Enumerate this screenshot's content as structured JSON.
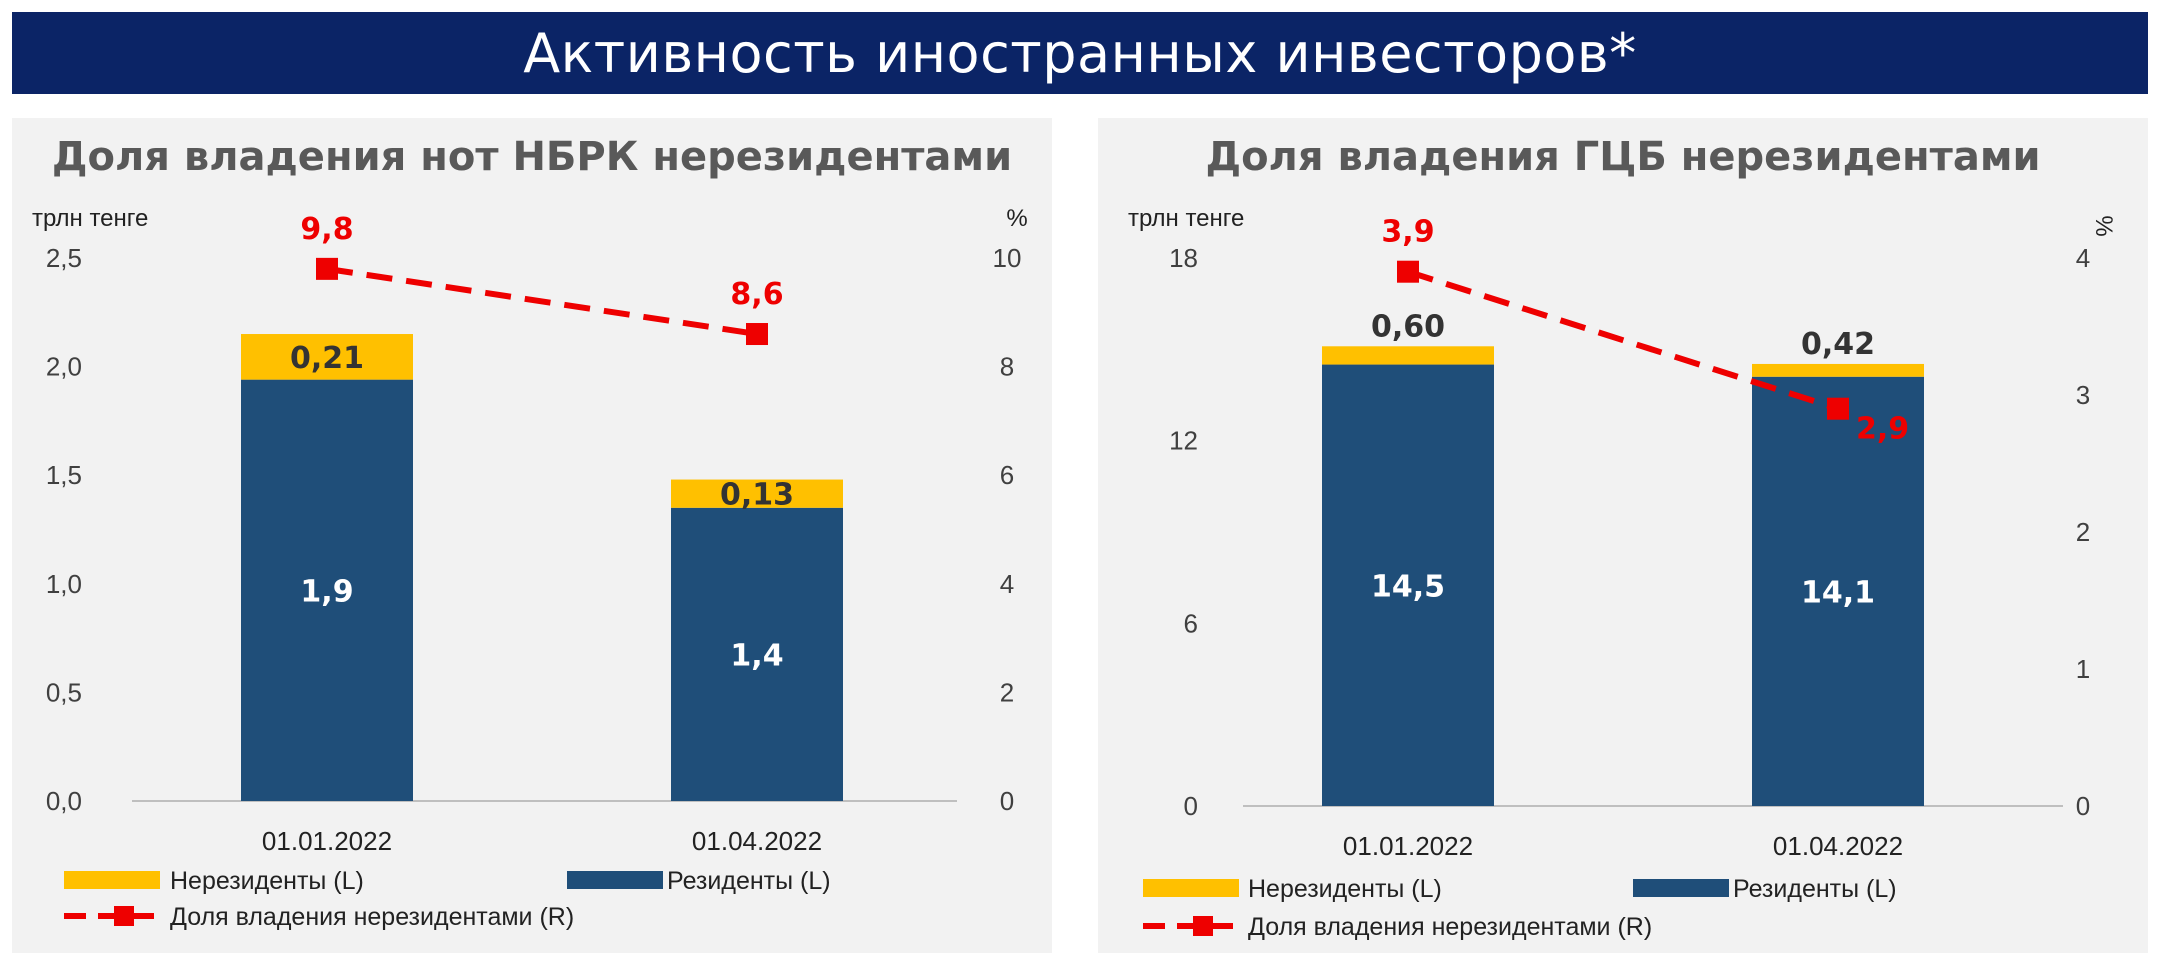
{
  "header": {
    "title": "Активность иностранных инвесторов*"
  },
  "colors": {
    "banner": "#0b2466",
    "residents": "#1f4e79",
    "nonresidents": "#ffc000",
    "share": "#ee0000"
  },
  "chart_data": [
    {
      "type": "bar",
      "stacked": true,
      "title": "Доля владения нот НБРК нерезидентами",
      "left_unit": "трлн тенге",
      "right_unit": "%",
      "categories": [
        "01.01.2022",
        "01.04.2022"
      ],
      "left_ticks": [
        "0,0",
        "0,5",
        "1,0",
        "1,5",
        "2,0",
        "2,5"
      ],
      "right_ticks": [
        "0",
        "2",
        "4",
        "6",
        "8",
        "10"
      ],
      "ylim_left": [
        0,
        2.5
      ],
      "ylim_right": [
        0,
        10
      ],
      "series": [
        {
          "name": "Резиденты (L)",
          "axis": "left",
          "kind": "bar",
          "values": [
            1.94,
            1.35
          ],
          "labels": [
            "1,9",
            "1,4"
          ]
        },
        {
          "name": "Нерезиденты (L)",
          "axis": "left",
          "kind": "bar",
          "values": [
            0.21,
            0.13
          ],
          "labels": [
            "0,21",
            "0,13"
          ]
        },
        {
          "name": "Доля владения нерезидентами (R)",
          "axis": "right",
          "kind": "line",
          "values": [
            9.8,
            8.6
          ],
          "labels": [
            "9,8",
            "8,6"
          ]
        }
      ]
    },
    {
      "type": "bar",
      "stacked": true,
      "title": "Доля владения ГЦБ нерезидентами",
      "left_unit": "трлн тенге",
      "right_unit": "%",
      "categories": [
        "01.01.2022",
        "01.04.2022"
      ],
      "left_ticks": [
        "0",
        "6",
        "12",
        "18"
      ],
      "right_ticks": [
        "0",
        "1",
        "2",
        "3",
        "4"
      ],
      "ylim_left": [
        0,
        18
      ],
      "ylim_right": [
        0,
        4
      ],
      "series": [
        {
          "name": "Резиденты (L)",
          "axis": "left",
          "kind": "bar",
          "values": [
            14.5,
            14.1
          ],
          "labels": [
            "14,5",
            "14,1"
          ]
        },
        {
          "name": "Нерезиденты (L)",
          "axis": "left",
          "kind": "bar",
          "values": [
            0.6,
            0.42
          ],
          "labels": [
            "0,60",
            "0,42"
          ]
        },
        {
          "name": "Доля владения нерезидентами (R)",
          "axis": "right",
          "kind": "line",
          "values": [
            3.9,
            2.9
          ],
          "labels": [
            "3,9",
            "2,9"
          ]
        }
      ]
    }
  ]
}
